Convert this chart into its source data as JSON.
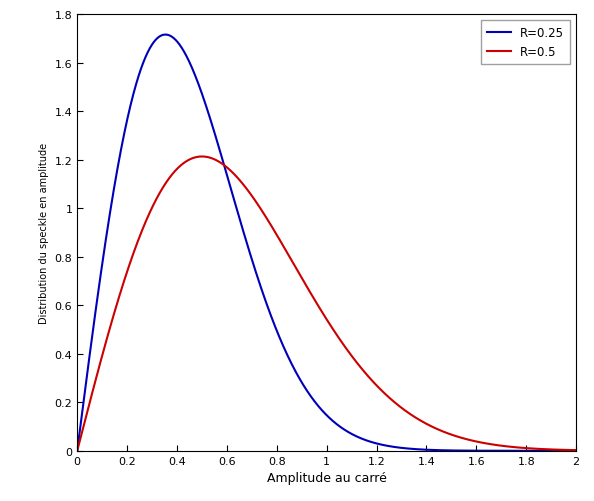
{
  "title": "",
  "xlabel": "Amplitude au carré",
  "ylabel_text": "Distribution du speckle en amplitude",
  "R_values": [
    0.25,
    0.5
  ],
  "colors": [
    "#0000bb",
    "#cc0000"
  ],
  "labels": [
    "R=0.25",
    "R=0.5"
  ],
  "x_min": 0,
  "x_max": 2,
  "y_min": 0,
  "y_max": 1.8,
  "x_ticks": [
    0,
    0.2,
    0.4,
    0.6,
    0.8,
    1.0,
    1.2,
    1.4,
    1.6,
    1.8,
    2.0
  ],
  "y_ticks": [
    0,
    0.2,
    0.4,
    0.6,
    0.8,
    1.0,
    1.2,
    1.4,
    1.6,
    1.8
  ],
  "legend_loc": "upper right",
  "background_color": "#ffffff",
  "fig_width": 5.94,
  "fig_height": 5.02,
  "dpi": 100
}
